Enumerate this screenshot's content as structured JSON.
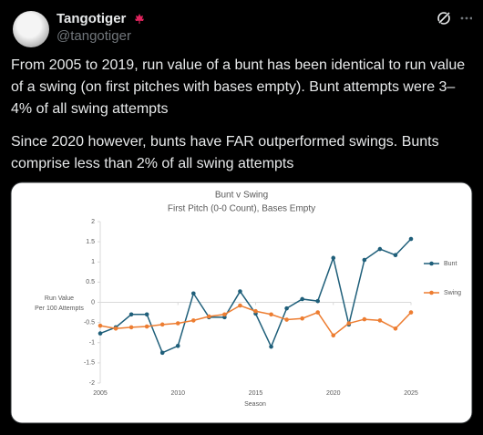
{
  "tweet": {
    "name": "Tangotiger",
    "handle": "@tangotiger",
    "paragraphs": [
      "From 2005 to 2019, run value of a bunt has been identical to run value of a swing (on first pitches with bases empty). Bunt attempts were 3–4% of all swing attempts",
      "Since 2020 however, bunts have FAR outperformed swings. Bunts comprise less than 2% of all swing attempts"
    ]
  },
  "chart_data": {
    "type": "line",
    "title": "Bunt v Swing",
    "subtitle": "First Pitch (0-0 Count), Bases Empty",
    "ylabel": [
      "Run Value",
      "Per 100 Attempts"
    ],
    "xlabel": "Season",
    "x": [
      2005,
      2006,
      2007,
      2008,
      2009,
      2010,
      2011,
      2012,
      2013,
      2014,
      2015,
      2016,
      2017,
      2018,
      2019,
      2020,
      2021,
      2022,
      2023,
      2024,
      2025
    ],
    "series": [
      {
        "name": "Bunt",
        "color": "#1f5f7a",
        "values": [
          -0.77,
          -0.62,
          -0.3,
          -0.3,
          -1.25,
          -1.08,
          0.22,
          -0.37,
          -0.37,
          0.27,
          -0.28,
          -1.1,
          -0.15,
          0.08,
          0.03,
          1.1,
          -0.55,
          1.05,
          1.32,
          1.17,
          1.57
        ]
      },
      {
        "name": "Swing",
        "color": "#ed7d31",
        "values": [
          -0.58,
          -0.65,
          -0.62,
          -0.6,
          -0.55,
          -0.52,
          -0.45,
          -0.35,
          -0.3,
          -0.08,
          -0.22,
          -0.3,
          -0.43,
          -0.4,
          -0.25,
          -0.82,
          -0.52,
          -0.42,
          -0.45,
          -0.65,
          -0.25
        ]
      }
    ],
    "xlim": [
      2005,
      2025
    ],
    "xticks": [
      2005,
      2010,
      2015,
      2020,
      2025
    ],
    "ylim": [
      -2,
      2
    ],
    "yticks": [
      -2,
      -1.5,
      -1,
      -0.5,
      0,
      0.5,
      1,
      1.5,
      2
    ],
    "legend": "right"
  }
}
